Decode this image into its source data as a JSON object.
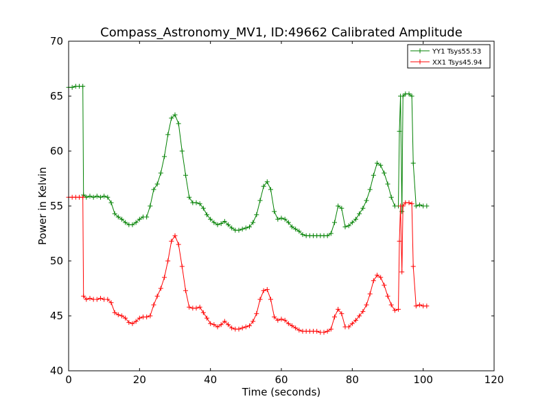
{
  "chart_data": {
    "type": "line",
    "title": "Compass_Astronomy_MV1, ID:49662 Calibrated Amplitude",
    "xlabel": "Time (seconds)",
    "ylabel": "Power in Kelvin",
    "xlim": [
      0,
      120
    ],
    "ylim": [
      40,
      70
    ],
    "xticks": [
      0,
      20,
      40,
      60,
      80,
      100,
      120
    ],
    "yticks": [
      40,
      45,
      50,
      55,
      60,
      65,
      70
    ],
    "grid": false,
    "legend_position": "top-right",
    "marker": "+",
    "series": [
      {
        "name": "YY1 Tsys55.53",
        "color": "#008000",
        "x": [
          0,
          1,
          2,
          3,
          4,
          4.2,
          5,
          6,
          7,
          8,
          9,
          10,
          11,
          12,
          13,
          14,
          15,
          16,
          17,
          18,
          19,
          20,
          21,
          22,
          23,
          24,
          25,
          26,
          27,
          28,
          29,
          30,
          31,
          32,
          33,
          34,
          35,
          36,
          37,
          38,
          39,
          40,
          41,
          42,
          43,
          44,
          45,
          46,
          47,
          48,
          49,
          50,
          51,
          52,
          53,
          54,
          55,
          56,
          57,
          58,
          59,
          60,
          61,
          62,
          63,
          64,
          65,
          66,
          67,
          68,
          69,
          70,
          71,
          72,
          73,
          74,
          75,
          76,
          77,
          78,
          79,
          80,
          81,
          82,
          83,
          84,
          85,
          86,
          87,
          88,
          89,
          90,
          91,
          92,
          93,
          93.3,
          93.6,
          94,
          94.3,
          95,
          96,
          96.8,
          97.2,
          98,
          99,
          100,
          101
        ],
        "y": [
          65.8,
          65.8,
          65.9,
          65.9,
          65.9,
          56.0,
          55.8,
          55.9,
          55.8,
          55.9,
          55.8,
          55.9,
          55.8,
          55.3,
          54.3,
          54.0,
          53.8,
          53.5,
          53.3,
          53.3,
          53.5,
          53.8,
          54.0,
          54.0,
          55.0,
          56.5,
          57.0,
          58.0,
          59.5,
          61.5,
          63.0,
          63.3,
          62.5,
          60.0,
          57.8,
          55.8,
          55.3,
          55.3,
          55.2,
          54.8,
          54.2,
          53.8,
          53.5,
          53.3,
          53.4,
          53.6,
          53.3,
          53.0,
          52.8,
          52.8,
          52.9,
          53.0,
          53.1,
          53.5,
          54.2,
          55.5,
          56.8,
          57.2,
          56.5,
          54.5,
          53.8,
          53.9,
          53.8,
          53.5,
          53.1,
          52.9,
          52.7,
          52.4,
          52.3,
          52.3,
          52.3,
          52.3,
          52.3,
          52.3,
          52.3,
          52.5,
          53.5,
          55.0,
          54.8,
          53.1,
          53.2,
          53.5,
          53.8,
          54.3,
          54.8,
          55.5,
          56.5,
          57.8,
          58.9,
          58.7,
          58.0,
          57.0,
          55.8,
          55.0,
          55.0,
          61.8,
          65.0,
          54.5,
          65.0,
          65.2,
          65.2,
          65.0,
          58.9,
          55.0,
          55.1,
          55.0,
          55.0
        ],
        "visible_points": 107
      },
      {
        "name": "XX1 Tsys45.94",
        "color": "#ff0000",
        "x": [
          0,
          1,
          2,
          3,
          4,
          4.2,
          5,
          6,
          7,
          8,
          9,
          10,
          11,
          12,
          13,
          14,
          15,
          16,
          17,
          18,
          19,
          20,
          21,
          22,
          23,
          24,
          25,
          26,
          27,
          28,
          29,
          30,
          31,
          32,
          33,
          34,
          35,
          36,
          37,
          38,
          39,
          40,
          41,
          42,
          43,
          44,
          45,
          46,
          47,
          48,
          49,
          50,
          51,
          52,
          53,
          54,
          55,
          56,
          57,
          58,
          59,
          60,
          61,
          62,
          63,
          64,
          65,
          66,
          67,
          68,
          69,
          70,
          71,
          72,
          73,
          74,
          75,
          76,
          77,
          78,
          79,
          80,
          81,
          82,
          83,
          84,
          85,
          86,
          87,
          88,
          89,
          90,
          91,
          92,
          93,
          93.3,
          93.6,
          94,
          94.3,
          95,
          96,
          96.8,
          97.2,
          98,
          99,
          100,
          101
        ],
        "y": [
          55.8,
          55.8,
          55.8,
          55.8,
          55.8,
          46.8,
          46.5,
          46.6,
          46.5,
          46.5,
          46.6,
          46.5,
          46.5,
          46.2,
          45.3,
          45.1,
          45.0,
          44.8,
          44.4,
          44.3,
          44.5,
          44.8,
          44.9,
          44.9,
          45.0,
          46.0,
          46.8,
          47.5,
          48.5,
          50.0,
          51.8,
          52.3,
          51.5,
          49.5,
          47.3,
          45.8,
          45.7,
          45.7,
          45.8,
          45.3,
          44.8,
          44.3,
          44.2,
          44.0,
          44.2,
          44.5,
          44.2,
          43.9,
          43.8,
          43.8,
          43.9,
          44.0,
          44.1,
          44.5,
          45.2,
          46.5,
          47.3,
          47.4,
          46.5,
          44.9,
          44.6,
          44.7,
          44.6,
          44.3,
          44.1,
          43.9,
          43.7,
          43.6,
          43.6,
          43.6,
          43.6,
          43.6,
          43.5,
          43.5,
          43.6,
          43.8,
          44.9,
          45.6,
          45.2,
          44.0,
          44.0,
          44.3,
          44.6,
          45.0,
          45.4,
          46.0,
          47.0,
          48.2,
          48.7,
          48.5,
          47.8,
          46.8,
          46.0,
          45.5,
          45.6,
          51.8,
          55.0,
          49.0,
          55.0,
          55.3,
          55.3,
          55.2,
          49.5,
          45.9,
          46.0,
          45.9,
          45.9
        ],
        "visible_points": 107
      }
    ]
  }
}
